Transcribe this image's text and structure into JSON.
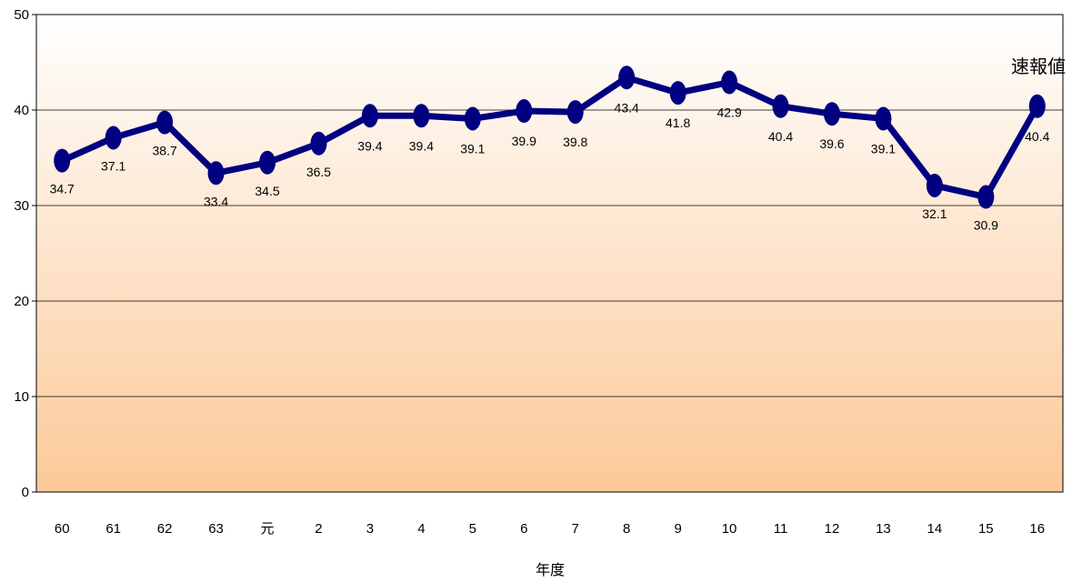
{
  "chart_data": {
    "type": "line",
    "title": "",
    "xlabel": "年度",
    "ylabel": "",
    "ylim": [
      0,
      50
    ],
    "yticks": [
      0,
      10,
      20,
      30,
      40,
      50
    ],
    "grid": true,
    "categories": [
      "60",
      "61",
      "62",
      "63",
      "元",
      "2",
      "3",
      "4",
      "5",
      "6",
      "7",
      "8",
      "9",
      "10",
      "11",
      "12",
      "13",
      "14",
      "15",
      "16"
    ],
    "series": [
      {
        "values": [
          34.7,
          37.1,
          38.7,
          33.4,
          34.5,
          36.5,
          39.4,
          39.4,
          39.1,
          39.9,
          39.8,
          43.4,
          41.8,
          42.9,
          40.4,
          39.6,
          39.1,
          32.1,
          30.9,
          40.4
        ],
        "labels": [
          "34.7",
          "37.1",
          "38.7",
          "33.4",
          "34.5",
          "36.5",
          "39.4",
          "39.4",
          "39.1",
          "39.9",
          "39.8",
          "43.4",
          "41.8",
          "42.9",
          "40.4",
          "39.6",
          "39.1",
          "32.1",
          "30.9",
          "40.4"
        ]
      }
    ],
    "annotation": "速報値",
    "colors": {
      "line": "#000080",
      "background_top": "#ffffff",
      "background_bottom": "#fcc998"
    }
  }
}
